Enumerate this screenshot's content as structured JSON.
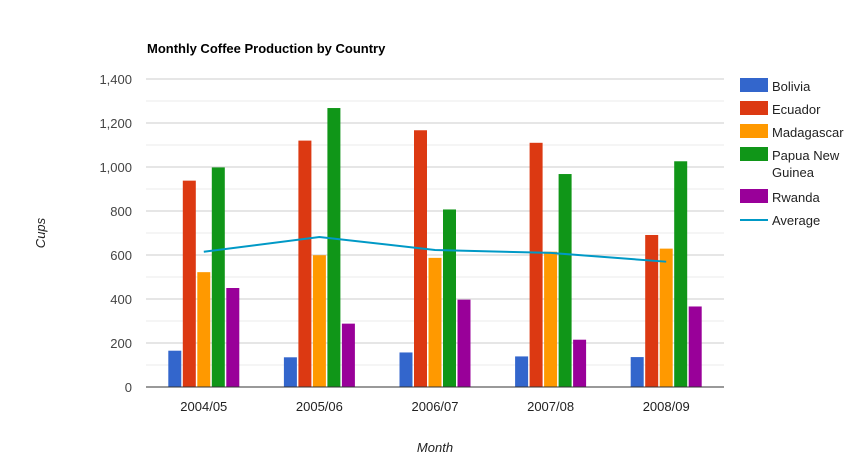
{
  "chart_data": {
    "type": "bar",
    "title": "Monthly Coffee Production by Country",
    "xlabel": "Month",
    "ylabel": "Cups",
    "ylim": [
      0,
      1400
    ],
    "yticks": [
      "0",
      "200",
      "400",
      "600",
      "800",
      "1,000",
      "1,200",
      "1,400"
    ],
    "ytick_values": [
      0,
      200,
      400,
      600,
      800,
      1000,
      1200,
      1400
    ],
    "grid": true,
    "legend_position": "right",
    "categories": [
      "2004/05",
      "2005/06",
      "2006/07",
      "2007/08",
      "2008/09"
    ],
    "series": [
      {
        "name": "Bolivia",
        "type": "bar",
        "color": "#3366cc",
        "values": [
          165,
          135,
          157,
          139,
          136
        ]
      },
      {
        "name": "Ecuador",
        "type": "bar",
        "color": "#dc3912",
        "values": [
          938,
          1120,
          1167,
          1110,
          691
        ]
      },
      {
        "name": "Madagascar",
        "type": "bar",
        "color": "#ff9900",
        "values": [
          522,
          599,
          587,
          615,
          629
        ]
      },
      {
        "name": "Papua New Guinea",
        "type": "bar",
        "color": "#109618",
        "values": [
          998,
          1268,
          807,
          968,
          1026
        ]
      },
      {
        "name": "Rwanda",
        "type": "bar",
        "color": "#990099",
        "values": [
          450,
          288,
          397,
          215,
          366
        ]
      },
      {
        "name": "Average",
        "type": "line",
        "color": "#0099c6",
        "values": [
          614.6,
          682,
          623,
          609.4,
          569.6
        ]
      }
    ]
  }
}
